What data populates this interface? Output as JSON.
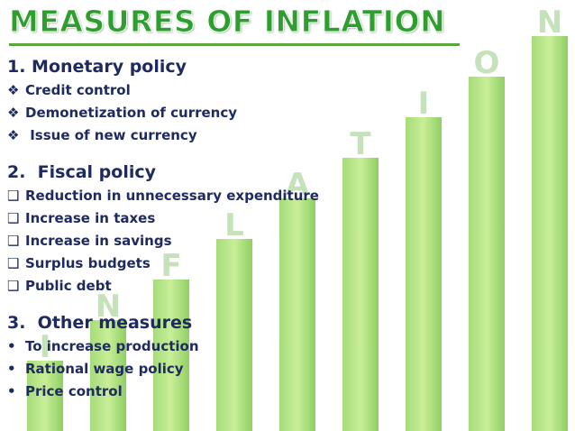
{
  "title": "MEASURES OF INFLATION",
  "background_letters": [
    "I",
    "N",
    "F",
    "L",
    "A",
    "T",
    "I",
    "O",
    "N"
  ],
  "sections": [
    {
      "heading": "1. Monetary policy",
      "marker": "❖",
      "items": [
        "Credit control",
        "Demonetization of currency",
        " Issue of new currency"
      ]
    },
    {
      "heading": "2.  Fiscal policy",
      "marker": "❑",
      "items": [
        "Reduction in unnecessary expenditure",
        "Increase in taxes",
        "Increase in savings",
        "Surplus budgets",
        "Public debt"
      ]
    },
    {
      "heading": "3.  Other measures",
      "marker": "•",
      "items": [
        "To increase production",
        "Rational wage policy",
        "Price control"
      ]
    }
  ]
}
